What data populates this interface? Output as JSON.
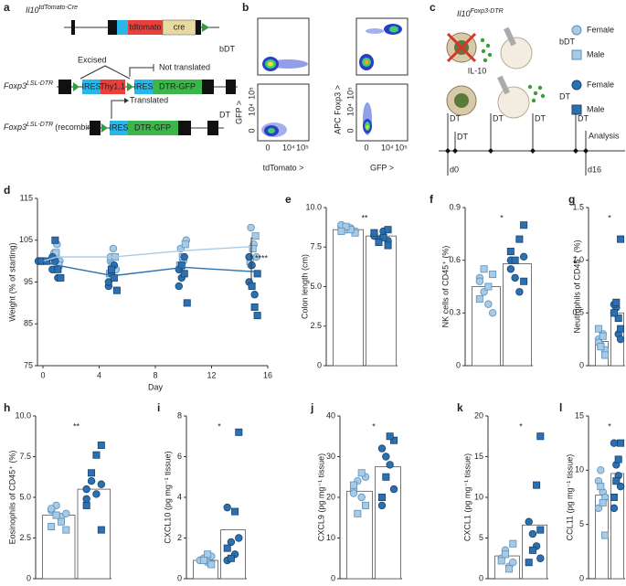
{
  "panel_a": {
    "label": "a",
    "construct1": {
      "gene": "Il10",
      "allele": "tdTomato-Cre",
      "boxes": [
        "tdtomato",
        "cre"
      ]
    },
    "construct2": {
      "gene": "Foxp3",
      "allele": "LSL-DTR",
      "boxes": [
        "IRES",
        "Thy1.1",
        "IRES",
        "DTR-GFP"
      ],
      "excised": "Excised",
      "not_translated": "Not translated"
    },
    "construct3": {
      "gene": "Foxp3",
      "allele": "LSL-DTR",
      "suffix": "(recombined)",
      "boxes": [
        "IRES",
        "DTR-GFP"
      ],
      "translated": "Translated"
    }
  },
  "panel_b": {
    "label": "b",
    "rows": [
      "bDT",
      "DT"
    ],
    "y_labels": [
      "GFP >",
      "APC Foxp3 >"
    ],
    "x_labels": [
      "tdTomato >",
      "GFP >"
    ],
    "ticks": [
      "0",
      "10⁴",
      "10⁵"
    ]
  },
  "panel_c": {
    "label": "c",
    "gene": "Il10",
    "allele": "Foxp3-DTR",
    "cytokine": "IL-10",
    "legend": [
      {
        "group": "bDT",
        "items": [
          "Female",
          "Male"
        ]
      },
      {
        "group": "DT",
        "items": [
          "Female",
          "Male"
        ]
      }
    ],
    "timeline": {
      "injections": [
        "DT",
        "DT",
        "DT",
        "DT",
        "DT"
      ],
      "end": "Analysis",
      "start_day": "d0",
      "end_day": "d16"
    }
  },
  "chart_data": [
    {
      "panel": "d",
      "type": "line",
      "xlabel": "Day",
      "ylabel": "Weight (% of starting)",
      "x": [
        0,
        1,
        5,
        10,
        15
      ],
      "xlim": [
        0,
        16
      ],
      "xticks": [
        0,
        4,
        8,
        12,
        16
      ],
      "ylim": [
        75,
        115
      ],
      "yticks": [
        75,
        85,
        95,
        105,
        115
      ],
      "annotation": "****",
      "series": [
        {
          "color": "#a7cbe6",
          "values": [
            100,
            101,
            101,
            102.5,
            103.5
          ],
          "female": [
            [
              100,
              100
            ],
            [
              102,
              104,
              100,
              98
            ],
            [
              100,
              103,
              98,
              101
            ],
            [
              103,
              100,
              105,
              98
            ],
            [
              108,
              104,
              101,
              99
            ]
          ],
          "male": [
            [
              100
            ],
            [
              99,
              102,
              100
            ],
            [
              101,
              99,
              97
            ],
            [
              104,
              101,
              99
            ],
            [
              106,
              103,
              100
            ]
          ]
        },
        {
          "color": "#2b71b1",
          "values": [
            100,
            99,
            96.5,
            98.5,
            97.5
          ],
          "female": [
            [
              100,
              100
            ],
            [
              98,
              100,
              96,
              101
            ],
            [
              94,
              97,
              99,
              95
            ],
            [
              98,
              96,
              101,
              94
            ],
            [
              95,
              99,
              92,
              101
            ]
          ],
          "male": [
            [
              100
            ],
            [
              96,
              98,
              105
            ],
            [
              93,
              96,
              98
            ],
            [
              90,
              97,
              99
            ],
            [
              87,
              89,
              94,
              97
            ]
          ]
        }
      ]
    },
    {
      "panel": "e",
      "type": "bar",
      "ylabel": "Colon length (cm)",
      "ylim": [
        0,
        10
      ],
      "yticks": [
        0,
        2.5,
        {
          "value": 5,
          "label": "5.0"
        },
        7.5,
        {
          "value": 10,
          "label": "10.0"
        }
      ],
      "annotation": "**",
      "values": [
        8.6,
        8.2
      ],
      "colors": [
        "#a7cbe6",
        "#2b71b1"
      ],
      "female": [
        [
          8.8,
          8.6,
          8.7,
          8.5,
          8.9
        ],
        [
          8.3,
          8.0,
          8.5,
          7.9,
          8.2
        ]
      ],
      "male": [
        [
          8.4,
          8.6,
          8.8,
          8.5
        ],
        [
          8.6,
          8.1,
          7.8,
          8.4,
          7.6
        ]
      ]
    },
    {
      "panel": "f",
      "type": "bar",
      "ylabel": "NK cells of CD45⁺ (%)",
      "ylim": [
        0,
        0.9
      ],
      "yticks": [
        0,
        0.3,
        0.6,
        0.9
      ],
      "annotation": "*",
      "values": [
        0.45,
        0.58
      ],
      "colors": [
        "#a7cbe6",
        "#2b71b1"
      ],
      "female": [
        [
          0.5,
          0.42,
          0.35,
          0.3,
          0.48
        ],
        [
          0.6,
          0.5,
          0.42,
          0.62,
          0.55
        ]
      ],
      "male": [
        [
          0.52,
          0.45,
          0.55,
          0.38
        ],
        [
          0.8,
          0.72,
          0.6,
          0.65,
          0.48
        ]
      ]
    },
    {
      "panel": "g",
      "type": "bar",
      "ylabel": "Neutrophils of CD45⁺ (%)",
      "ylim": [
        0,
        1.5
      ],
      "yticks": [
        0,
        0.5,
        {
          "value": 1,
          "label": "1.0"
        },
        1.5
      ],
      "annotation": "*",
      "values": [
        0.23,
        0.5
      ],
      "colors": [
        "#a7cbe6",
        "#2b71b1"
      ],
      "female": [
        [
          0.25,
          0.2,
          0.3,
          0.15,
          0.22
        ],
        [
          0.5,
          0.55,
          0.3,
          0.25,
          0.58
        ]
      ],
      "male": [
        [
          0.1,
          0.28,
          0.18,
          0.35
        ],
        [
          1.2,
          0.45,
          0.6,
          0.5,
          0.35
        ]
      ]
    },
    {
      "panel": "h",
      "type": "bar",
      "ylabel": "Eosinophils of CD45⁺ (%)",
      "ylim": [
        0,
        10
      ],
      "yticks": [
        0,
        2.5,
        {
          "value": 5,
          "label": "5.0"
        },
        7.5,
        {
          "value": 10,
          "label": "10.0"
        }
      ],
      "annotation": "**",
      "values": [
        3.9,
        5.5
      ],
      "colors": [
        "#a7cbe6",
        "#2b71b1"
      ],
      "female": [
        [
          4.2,
          4.5,
          3.8,
          4.0,
          4.3
        ],
        [
          5.5,
          6.0,
          5.2,
          5.8,
          4.9
        ]
      ],
      "male": [
        [
          3.0,
          3.5,
          3.9,
          3.2
        ],
        [
          8.2,
          7.6,
          6.5,
          4.5,
          3.0
        ]
      ]
    },
    {
      "panel": "i",
      "type": "bar",
      "ylabel": "CXCL10 (pg mg⁻¹ tissue)",
      "ylim": [
        0,
        8
      ],
      "yticks": [
        0,
        2,
        4,
        6,
        8
      ],
      "annotation": "*",
      "values": [
        0.9,
        2.4
      ],
      "colors": [
        "#a7cbe6",
        "#2b71b1"
      ],
      "female": [
        [
          0.9,
          1.0,
          0.8,
          1.1
        ],
        [
          3.5,
          1.8,
          1.2,
          2.0,
          0.9
        ]
      ],
      "male": [
        [
          0.7,
          1.2,
          0.9
        ],
        [
          7.2,
          3.3,
          1.0,
          1.5
        ]
      ]
    },
    {
      "panel": "j",
      "type": "bar",
      "ylabel": "CXCL9 (pg mg⁻¹ tissue)",
      "ylim": [
        0,
        40
      ],
      "yticks": [
        0,
        10,
        20,
        30,
        40
      ],
      "annotation": "*",
      "values": [
        21.5,
        27.5
      ],
      "colors": [
        "#a7cbe6",
        "#2b71b1"
      ],
      "female": [
        [
          22,
          24,
          20,
          25,
          21
        ],
        [
          32,
          30,
          28,
          22,
          18
        ]
      ],
      "male": [
        [
          18,
          26,
          16,
          23
        ],
        [
          34,
          35,
          25,
          20
        ]
      ]
    },
    {
      "panel": "k",
      "type": "bar",
      "ylabel": "CXCL1 (pg mg⁻¹ tissue)",
      "ylim": [
        0,
        20
      ],
      "yticks": [
        0,
        5,
        10,
        15,
        20
      ],
      "annotation": "*",
      "values": [
        2.8,
        6.6
      ],
      "colors": [
        "#a7cbe6",
        "#2b71b1"
      ],
      "female": [
        [
          2.5,
          3.5,
          1.5,
          2.0
        ],
        [
          7.0,
          5.5,
          4.0,
          2.5
        ]
      ],
      "male": [
        [
          4.3,
          1.2,
          3.0,
          2.2
        ],
        [
          17.5,
          11.5,
          3.5,
          2.0,
          6.0
        ]
      ]
    },
    {
      "panel": "l",
      "type": "bar",
      "ylabel": "CCL11 (pg mg⁻¹ tissue)",
      "ylim": [
        0,
        15
      ],
      "yticks": [
        0,
        5,
        10,
        15
      ],
      "annotation": "*",
      "values": [
        7.7,
        9.7
      ],
      "colors": [
        "#a7cbe6",
        "#2b71b1"
      ],
      "female": [
        [
          9,
          10,
          8,
          7.5,
          6.5
        ],
        [
          12.5,
          10.5,
          9.5,
          8.5,
          6.5
        ]
      ],
      "male": [
        [
          4,
          7,
          8.5
        ],
        [
          12.5,
          11,
          9,
          7.5
        ]
      ]
    }
  ]
}
